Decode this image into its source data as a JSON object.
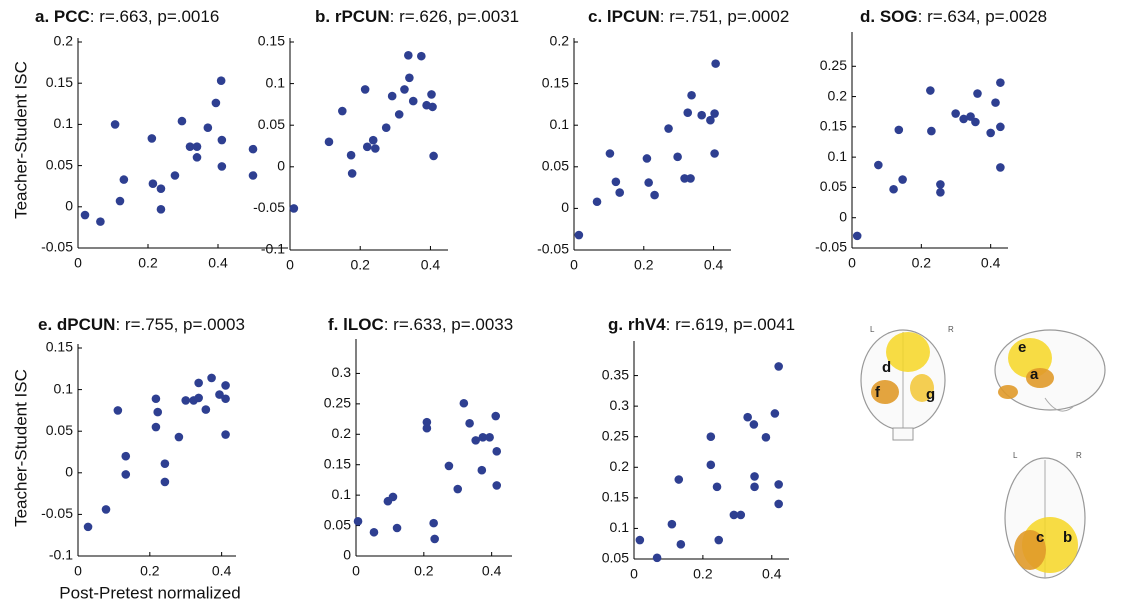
{
  "figure": {
    "y_label": "Teacher-Student ISC",
    "x_label": "Post-Pretest normalized"
  },
  "brain_labels": {
    "back_left": "L",
    "back_right": "R",
    "d": "d",
    "f": "f",
    "g": "g",
    "e": "e",
    "a": "a",
    "top_left": "L",
    "top_right": "R",
    "c": "c",
    "b": "b"
  },
  "chart_data": [
    {
      "type": "scatter",
      "title_label": "a. PCC",
      "title_stats": ": r=.663, p=.0016",
      "color": "#2e3f91",
      "x": [
        0.02,
        0.064,
        0.106,
        0.12,
        0.131,
        0.211,
        0.214,
        0.237,
        0.237,
        0.277,
        0.297,
        0.32,
        0.34,
        0.34,
        0.371,
        0.394,
        0.409,
        0.411,
        0.411,
        0.5,
        0.5
      ],
      "values": [
        -0.01,
        -0.018,
        0.1,
        0.007,
        0.033,
        0.083,
        0.028,
        0.022,
        -0.003,
        0.038,
        0.104,
        0.073,
        0.073,
        0.06,
        0.096,
        0.126,
        0.153,
        0.081,
        0.049,
        0.07,
        0.038
      ],
      "xlim": [
        0,
        0.6
      ],
      "ylim": [
        -0.05,
        0.2
      ],
      "xticks": [
        0,
        0.2,
        0.4
      ],
      "yticks": [
        -0.05,
        0,
        0.05,
        0.1,
        0.15,
        0.2
      ]
    },
    {
      "type": "scatter",
      "title_label": "b. rPCUN",
      "title_stats": ": r=.626, p=.0031",
      "color": "#2e3f91",
      "x": [
        0.011,
        0.111,
        0.149,
        0.174,
        0.177,
        0.214,
        0.22,
        0.237,
        0.243,
        0.274,
        0.291,
        0.311,
        0.326,
        0.337,
        0.34,
        0.351,
        0.374,
        0.389,
        0.403,
        0.406,
        0.409
      ],
      "values": [
        -0.05,
        0.03,
        0.067,
        0.014,
        -0.008,
        0.093,
        0.024,
        0.032,
        0.022,
        0.047,
        0.085,
        0.063,
        0.093,
        0.134,
        0.107,
        0.079,
        0.133,
        0.074,
        0.087,
        0.072,
        0.013
      ],
      "xlim": [
        0,
        0.45
      ],
      "ylim": [
        -0.1,
        0.15
      ],
      "xticks": [
        0,
        0.2,
        0.4
      ],
      "yticks": [
        -0.1,
        -0.05,
        0,
        0.05,
        0.1,
        0.15
      ]
    },
    {
      "type": "scatter",
      "title_label": "c. lPCUN",
      "title_stats": ": r=.751, p=.0002",
      "color": "#2e3f91",
      "x": [
        0.014,
        0.066,
        0.103,
        0.12,
        0.131,
        0.209,
        0.214,
        0.231,
        0.271,
        0.297,
        0.317,
        0.334,
        0.326,
        0.337,
        0.366,
        0.391,
        0.403,
        0.403,
        0.406
      ],
      "values": [
        -0.032,
        0.008,
        0.066,
        0.032,
        0.019,
        0.06,
        0.031,
        0.016,
        0.096,
        0.062,
        0.036,
        0.036,
        0.115,
        0.136,
        0.112,
        0.106,
        0.114,
        0.066,
        0.174
      ],
      "xlim": [
        0,
        0.45
      ],
      "ylim": [
        -0.05,
        0.2
      ],
      "xticks": [
        0,
        0.2,
        0.4
      ],
      "yticks": [
        -0.05,
        0,
        0.05,
        0.1,
        0.15,
        0.2
      ]
    },
    {
      "type": "scatter",
      "title_label": "d. SOG",
      "title_stats": ": r=.634, p=.0028",
      "color": "#2e3f91",
      "x": [
        0.015,
        0.076,
        0.12,
        0.135,
        0.146,
        0.226,
        0.229,
        0.255,
        0.255,
        0.299,
        0.322,
        0.342,
        0.356,
        0.362,
        0.4,
        0.414,
        0.428,
        0.428,
        0.428
      ],
      "values": [
        -0.03,
        0.087,
        0.047,
        0.145,
        0.063,
        0.21,
        0.143,
        0.055,
        0.042,
        0.172,
        0.163,
        0.167,
        0.158,
        0.205,
        0.14,
        0.19,
        0.223,
        0.15,
        0.083
      ],
      "xlim": [
        0,
        0.45
      ],
      "ylim": [
        -0.05,
        0.3
      ],
      "xticks": [
        0,
        0.2,
        0.4
      ],
      "yticks": [
        -0.05,
        0,
        0.05,
        0.1,
        0.15,
        0.2,
        0.25
      ]
    },
    {
      "type": "scatter",
      "title_label": "e. dPCUN",
      "title_stats": ": r=.755, p=.0003",
      "color": "#2e3f91",
      "x": [
        0.028,
        0.078,
        0.111,
        0.133,
        0.133,
        0.217,
        0.217,
        0.222,
        0.242,
        0.242,
        0.281,
        0.3,
        0.322,
        0.336,
        0.336,
        0.356,
        0.372,
        0.394,
        0.411,
        0.411,
        0.411
      ],
      "values": [
        -0.065,
        -0.044,
        0.075,
        0.02,
        -0.002,
        0.055,
        0.089,
        0.073,
        0.011,
        -0.011,
        0.043,
        0.087,
        0.087,
        0.108,
        0.09,
        0.076,
        0.114,
        0.094,
        0.105,
        0.089,
        0.046
      ],
      "xlim": [
        0,
        0.44
      ],
      "ylim": [
        -0.1,
        0.15
      ],
      "xticks": [
        0,
        0.2,
        0.4
      ],
      "yticks": [
        -0.1,
        -0.05,
        0,
        0.05,
        0.1,
        0.15
      ]
    },
    {
      "type": "scatter",
      "title_label": "f. lLOC",
      "title_stats": ": r=.633, p=.0033",
      "color": "#2e3f91",
      "x": [
        0.006,
        0.053,
        0.094,
        0.109,
        0.121,
        0.209,
        0.209,
        0.229,
        0.232,
        0.274,
        0.3,
        0.318,
        0.335,
        0.353,
        0.371,
        0.374,
        0.394,
        0.412,
        0.415,
        0.415
      ],
      "values": [
        0.057,
        0.039,
        0.09,
        0.097,
        0.046,
        0.22,
        0.21,
        0.054,
        0.028,
        0.148,
        0.11,
        0.251,
        0.218,
        0.19,
        0.141,
        0.195,
        0.195,
        0.23,
        0.172,
        0.116
      ],
      "xlim": [
        0,
        0.46
      ],
      "ylim": [
        0,
        0.35
      ],
      "xticks": [
        0,
        0.2,
        0.4
      ],
      "yticks": [
        0,
        0.05,
        0.1,
        0.15,
        0.2,
        0.25,
        0.3
      ]
    },
    {
      "type": "scatter",
      "title_label": "g. rhV4",
      "title_stats": ": r=.619, p=.0041",
      "color": "#2e3f91",
      "x": [
        0.017,
        0.067,
        0.11,
        0.13,
        0.136,
        0.223,
        0.223,
        0.241,
        0.246,
        0.29,
        0.31,
        0.33,
        0.348,
        0.35,
        0.35,
        0.383,
        0.409,
        0.42,
        0.42,
        0.42
      ],
      "values": [
        0.081,
        0.052,
        0.107,
        0.18,
        0.074,
        0.25,
        0.204,
        0.168,
        0.081,
        0.122,
        0.122,
        0.282,
        0.27,
        0.185,
        0.168,
        0.249,
        0.288,
        0.365,
        0.172,
        0.14
      ],
      "xlim": [
        0,
        0.45
      ],
      "ylim": [
        0.05,
        0.4
      ],
      "xticks": [
        0,
        0.2,
        0.4
      ],
      "yticks": [
        0.05,
        0.1,
        0.15,
        0.2,
        0.25,
        0.3,
        0.35
      ]
    }
  ]
}
